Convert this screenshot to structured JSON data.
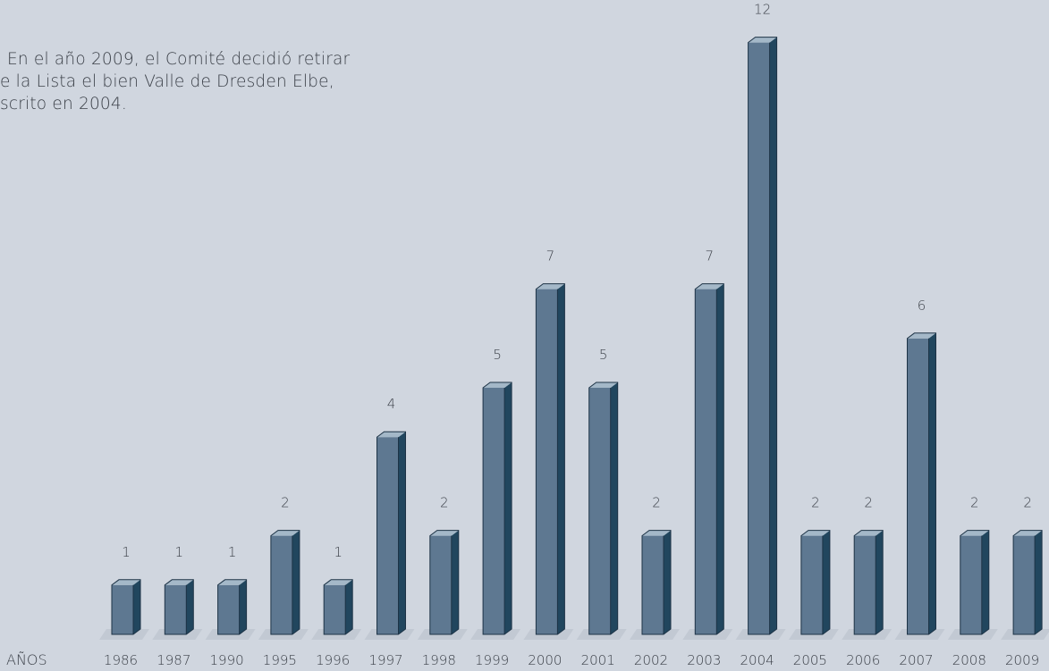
{
  "note": {
    "line1": "En el año 2009, el Comité decidió retirar",
    "line2": "e la Lista el bien Valle de Dresden Elbe,",
    "line3": "scrito en 2004."
  },
  "colors": {
    "background": "#d0d6df",
    "bar_front": "#5e7891",
    "bar_side": "#21465e",
    "bar_top": "#a4b8c8",
    "text": "#3a3f47"
  },
  "chart_data": {
    "type": "bar",
    "title": "",
    "xlabel": "AÑOS",
    "ylabel": "",
    "categories": [
      "1986",
      "1987",
      "1990",
      "1995",
      "1996",
      "1997",
      "1998",
      "1999",
      "2000",
      "2001",
      "2002",
      "2003",
      "2004",
      "2005",
      "2006",
      "2007",
      "2008",
      "2009"
    ],
    "values": [
      1,
      1,
      1,
      2,
      1,
      4,
      2,
      5,
      7,
      5,
      2,
      7,
      12,
      2,
      2,
      6,
      2,
      2
    ],
    "ylim": [
      0,
      12
    ],
    "grid": false,
    "legend": "none",
    "style": "3d-bar"
  }
}
